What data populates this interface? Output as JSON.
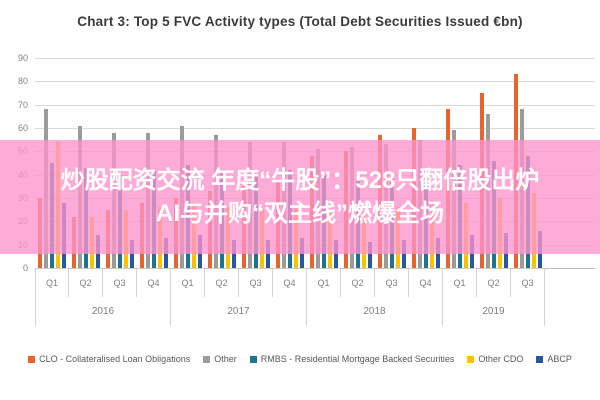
{
  "title": "Chart 3: Top 5 FVC Activity types (Total Debt Securities Issued €bn)",
  "overlay": {
    "line1": "炒股配资交流 年度“牛股”：528只翻倍股出炉",
    "line2": "AI与并购“双主线”燃爆全场",
    "band_color": "#ff94cd",
    "text_color": "#ffffff"
  },
  "chart_data": {
    "type": "bar",
    "title": "Chart 3: Top 5 FVC Activity types (Total Debt Securities Issued €bn)",
    "categories": [
      "Q1",
      "Q2",
      "Q3",
      "Q4",
      "Q1",
      "Q2",
      "Q3",
      "Q4",
      "Q1",
      "Q2",
      "Q3",
      "Q4",
      "Q1",
      "Q2",
      "Q3"
    ],
    "year_groups": [
      {
        "label": "2016",
        "quarters": 4
      },
      {
        "label": "2017",
        "quarters": 4
      },
      {
        "label": "2018",
        "quarters": 4
      },
      {
        "label": "2019",
        "quarters": 3
      }
    ],
    "series": [
      {
        "name": "CLO - Collateralised Loan Obligations",
        "color": "#e8642c",
        "values": [
          30,
          22,
          25,
          28,
          30,
          33,
          35,
          38,
          48,
          50,
          57,
          60,
          68,
          75,
          83
        ]
      },
      {
        "name": "Other",
        "color": "#9b9b9b",
        "values": [
          68,
          61,
          58,
          58,
          61,
          57,
          54,
          54,
          51,
          52,
          53,
          55,
          59,
          66,
          68
        ]
      },
      {
        "name": "RMBS - Residential Mortgage Backed Securities",
        "color": "#1f7391",
        "values": [
          45,
          43,
          40,
          42,
          44,
          42,
          40,
          42,
          40,
          38,
          40,
          42,
          44,
          46,
          48
        ]
      },
      {
        "name": "Other CDO",
        "color": "#ffc000",
        "values": [
          54,
          22,
          25,
          26,
          28,
          26,
          25,
          26,
          25,
          24,
          26,
          28,
          28,
          30,
          32
        ]
      },
      {
        "name": "ABCP",
        "color": "#2956a3",
        "values": [
          28,
          14,
          12,
          13,
          14,
          12,
          12,
          13,
          12,
          11,
          12,
          13,
          14,
          15,
          16
        ]
      }
    ],
    "ylabel": "",
    "xlabel": "",
    "ylim": [
      0,
      90
    ],
    "ytick_interval": 10,
    "grid": true,
    "legend_position": "bottom"
  }
}
